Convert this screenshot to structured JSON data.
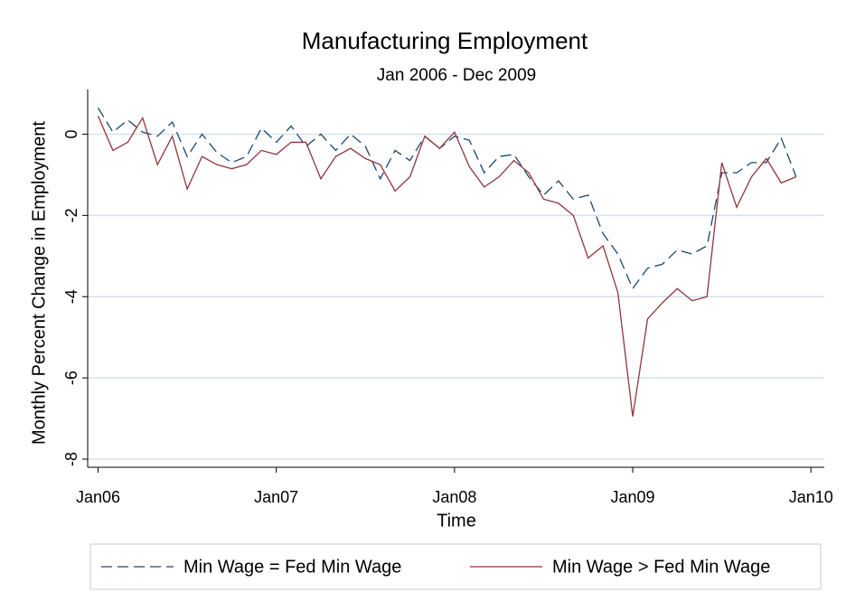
{
  "chart_data": {
    "type": "line",
    "title": "Manufacturing Employment",
    "subtitle": "Jan 2006 - Dec 2009",
    "xlabel": "Time",
    "ylabel": "Monthly Percent Change in Employment",
    "x": [
      0,
      1,
      2,
      3,
      4,
      5,
      6,
      7,
      8,
      9,
      10,
      11,
      12,
      13,
      14,
      15,
      16,
      17,
      18,
      19,
      20,
      21,
      22,
      23,
      24,
      25,
      26,
      27,
      28,
      29,
      30,
      31,
      32,
      33,
      34,
      35,
      36,
      37,
      38,
      39,
      40,
      41,
      42,
      43,
      44,
      45,
      46,
      47
    ],
    "xlim": [
      -0.7,
      48.9
    ],
    "xticks": [
      {
        "value": 0,
        "label": "Jan06"
      },
      {
        "value": 12,
        "label": "Jan07"
      },
      {
        "value": 24,
        "label": "Jan08"
      },
      {
        "value": 36,
        "label": "Jan09"
      },
      {
        "value": 48,
        "label": "Jan10"
      }
    ],
    "ylim": [
      -8.2,
      1.1
    ],
    "yticks": [
      -8,
      -6,
      -4,
      -2,
      0
    ],
    "grid": true,
    "legend": "bottom",
    "series": [
      {
        "name": "Min Wage = Fed Min Wage",
        "color": "#1a476f",
        "dash": true,
        "values": [
          0.65,
          0.05,
          0.35,
          0.05,
          -0.05,
          0.3,
          -0.55,
          0.0,
          -0.45,
          -0.7,
          -0.55,
          0.15,
          -0.2,
          0.2,
          -0.3,
          0.0,
          -0.4,
          0.0,
          -0.3,
          -1.1,
          -0.4,
          -0.65,
          -0.05,
          -0.35,
          -0.05,
          -0.15,
          -0.95,
          -0.55,
          -0.5,
          -1.05,
          -1.5,
          -1.15,
          -1.6,
          -1.5,
          -2.45,
          -2.95,
          -3.8,
          -3.3,
          -3.2,
          -2.85,
          -2.95,
          -2.75,
          -0.95,
          -0.95,
          -0.7,
          -0.7,
          -0.1,
          -1.05
        ]
      },
      {
        "name": "Min Wage > Fed Min Wage",
        "color": "#90353b",
        "dash": false,
        "values": [
          0.45,
          -0.4,
          -0.2,
          0.4,
          -0.75,
          -0.05,
          -1.35,
          -0.55,
          -0.75,
          -0.85,
          -0.75,
          -0.4,
          -0.5,
          -0.2,
          -0.2,
          -1.1,
          -0.55,
          -0.35,
          -0.6,
          -0.75,
          -1.4,
          -1.05,
          -0.05,
          -0.35,
          0.05,
          -0.8,
          -1.3,
          -1.05,
          -0.65,
          -0.95,
          -1.6,
          -1.7,
          -2.0,
          -3.05,
          -2.75,
          -3.9,
          -6.95,
          -4.55,
          -4.15,
          -3.8,
          -4.1,
          -4.0,
          -0.7,
          -1.8,
          -1.05,
          -0.6,
          -1.2,
          -1.05
        ]
      }
    ]
  }
}
